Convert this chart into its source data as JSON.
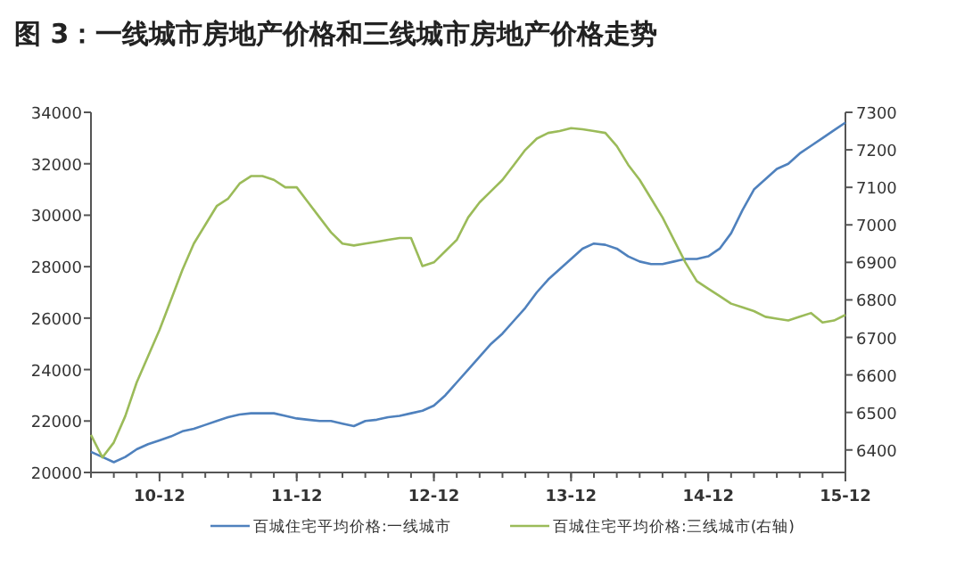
{
  "chart_data": {
    "type": "line",
    "title": "图 3：一线城市房地产价格和三线城市房地产价格走势",
    "x": [
      "2010-06",
      "2010-07",
      "2010-08",
      "2010-09",
      "2010-10",
      "2010-11",
      "2010-12",
      "2011-01",
      "2011-02",
      "2011-03",
      "2011-04",
      "2011-05",
      "2011-06",
      "2011-07",
      "2011-08",
      "2011-09",
      "2011-10",
      "2011-11",
      "2011-12",
      "2012-01",
      "2012-02",
      "2012-03",
      "2012-04",
      "2012-05",
      "2012-06",
      "2012-07",
      "2012-08",
      "2012-09",
      "2012-10",
      "2012-11",
      "2012-12",
      "2013-01",
      "2013-02",
      "2013-03",
      "2013-04",
      "2013-05",
      "2013-06",
      "2013-07",
      "2013-08",
      "2013-09",
      "2013-10",
      "2013-11",
      "2013-12",
      "2014-01",
      "2014-02",
      "2014-03",
      "2014-04",
      "2014-05",
      "2014-06",
      "2014-07",
      "2014-08",
      "2014-09",
      "2014-10",
      "2014-11",
      "2014-12",
      "2015-01",
      "2015-02",
      "2015-03",
      "2015-04",
      "2015-05",
      "2015-06",
      "2015-07",
      "2015-08",
      "2015-09",
      "2015-10",
      "2015-11",
      "2015-12"
    ],
    "series": [
      {
        "name": "百城住宅平均价格:一线城市",
        "color": "#4f81bd",
        "values": [
          20800,
          20600,
          20400,
          20600,
          20900,
          21100,
          21250,
          21400,
          21600,
          21700,
          21850,
          22000,
          22150,
          22250,
          22300,
          22300,
          22300,
          22200,
          22100,
          22050,
          22000,
          22000,
          21900,
          21800,
          22000,
          22050,
          22150,
          22200,
          22300,
          22400,
          22600,
          23000,
          23500,
          24000,
          24500,
          25000,
          25400,
          25900,
          26400,
          27000,
          27500,
          27900,
          28300,
          28700,
          28900,
          28850,
          28700,
          28400,
          28200,
          28100,
          28100,
          28200,
          28300,
          28300,
          28400,
          28700,
          29300,
          30200,
          31000,
          31400,
          31800,
          32000,
          32400,
          32700,
          33000,
          33300,
          33600
        ]
      },
      {
        "name": "百城住宅平均价格:三线城市(右轴)",
        "color": "#9bbb59",
        "axis": "y2",
        "values": [
          6440,
          6380,
          6420,
          6490,
          6580,
          6650,
          6720,
          6800,
          6880,
          6950,
          7000,
          7050,
          7070,
          7110,
          7130,
          7130,
          7120,
          7100,
          7100,
          7060,
          7020,
          6980,
          6950,
          6945,
          6950,
          6955,
          6960,
          6965,
          6965,
          6890,
          6900,
          6930,
          6960,
          7020,
          7060,
          7090,
          7120,
          7160,
          7200,
          7230,
          7245,
          7250,
          7258,
          7255,
          7250,
          7245,
          7210,
          7160,
          7120,
          7070,
          7020,
          6960,
          6900,
          6850,
          6830,
          6810,
          6790,
          6780,
          6770,
          6755,
          6750,
          6745,
          6755,
          6765,
          6740,
          6745,
          6760
        ]
      }
    ],
    "xlim": [
      "2010-06",
      "2015-12"
    ],
    "xticks": [
      {
        "value": "2010-12",
        "label": "10-12"
      },
      {
        "value": "2011-12",
        "label": "11-12"
      },
      {
        "value": "2012-12",
        "label": "12-12"
      },
      {
        "value": "2013-12",
        "label": "13-12"
      },
      {
        "value": "2014-12",
        "label": "14-12"
      },
      {
        "value": "2015-12",
        "label": "15-12"
      }
    ],
    "ylim": [
      20000,
      34000
    ],
    "yticks": [
      20000,
      22000,
      24000,
      26000,
      28000,
      30000,
      32000,
      34000
    ],
    "y2lim": [
      6340,
      7300
    ],
    "y2ticks": [
      6400,
      6500,
      6600,
      6700,
      6800,
      6900,
      7000,
      7100,
      7200,
      7300
    ],
    "legend": "bottom",
    "marker": "none",
    "line_style": "solid",
    "grid": false
  }
}
